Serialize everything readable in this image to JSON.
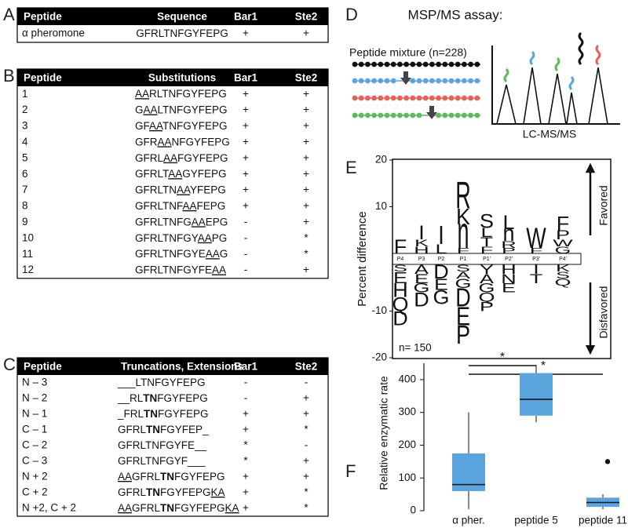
{
  "panel_labels": [
    "A",
    "B",
    "C",
    "D",
    "E",
    "F"
  ],
  "table_a": {
    "header": [
      "Peptide",
      "Sequence",
      "Bar1",
      "Ste2"
    ],
    "rows": [
      [
        "α pheromone",
        [
          {
            "text": "GFRLTNFGYFEPG"
          }
        ],
        "+",
        "+"
      ]
    ]
  },
  "table_b": {
    "header": [
      "Peptide",
      "Substitutions",
      "Bar1",
      "Ste2"
    ],
    "rows": [
      [
        "1",
        [
          {
            "text": "AA",
            "u": true
          },
          {
            "text": "RLTNFGYFEPG"
          }
        ],
        "+",
        "+"
      ],
      [
        "2",
        [
          {
            "text": "G"
          },
          {
            "text": "AA",
            "u": true
          },
          {
            "text": "LTNFGYFEPG"
          }
        ],
        "+",
        "+"
      ],
      [
        "3",
        [
          {
            "text": "GF"
          },
          {
            "text": "AA",
            "u": true
          },
          {
            "text": "TNFGYFEPG"
          }
        ],
        "+",
        "+"
      ],
      [
        "4",
        [
          {
            "text": "GFR"
          },
          {
            "text": "AA",
            "u": true
          },
          {
            "text": "NFGYFEPG"
          }
        ],
        "+",
        "+"
      ],
      [
        "5",
        [
          {
            "text": "GFRL"
          },
          {
            "text": "AA",
            "u": true
          },
          {
            "text": "FGYFEPG"
          }
        ],
        "+",
        "+"
      ],
      [
        "6",
        [
          {
            "text": "GFRLT"
          },
          {
            "text": "AA",
            "u": true
          },
          {
            "text": "GYFEPG"
          }
        ],
        "+",
        "+"
      ],
      [
        "7",
        [
          {
            "text": "GFRLTN"
          },
          {
            "text": "AA",
            "u": true
          },
          {
            "text": "YFEPG"
          }
        ],
        "+",
        "+"
      ],
      [
        "8",
        [
          {
            "text": "GFRLTNF"
          },
          {
            "text": "AA",
            "u": true
          },
          {
            "text": "FEPG"
          }
        ],
        "+",
        "+"
      ],
      [
        "9",
        [
          {
            "text": "GFRLTNFG"
          },
          {
            "text": "AA",
            "u": true
          },
          {
            "text": "EPG"
          }
        ],
        "-",
        "+"
      ],
      [
        "10",
        [
          {
            "text": "GFRLTNFGY"
          },
          {
            "text": "AA",
            "u": true
          },
          {
            "text": "PG"
          }
        ],
        "-",
        "*"
      ],
      [
        "11",
        [
          {
            "text": "GFRLTNFGYE"
          },
          {
            "text": "AA",
            "u": true
          },
          {
            "text": "G"
          }
        ],
        "-",
        "*"
      ],
      [
        "12",
        [
          {
            "text": "GFRLTNFGYFE"
          },
          {
            "text": "AA",
            "u": true
          }
        ],
        "-",
        "+"
      ]
    ]
  },
  "table_c": {
    "header": [
      "Peptide",
      "Truncations, Extensions",
      "Bar1",
      "Ste2"
    ],
    "rows": [
      [
        "N – 3",
        [
          {
            "text": "___LTNFGYFEPG"
          }
        ],
        "-",
        "-"
      ],
      [
        "N – 2",
        [
          {
            "text": "__RL"
          },
          {
            "text": "TN",
            "b": true
          },
          {
            "text": "FGYFEPG"
          }
        ],
        "-",
        "+"
      ],
      [
        "N – 1",
        [
          {
            "text": "_FRL"
          },
          {
            "text": "TN",
            "b": true
          },
          {
            "text": "FGYFEPG"
          }
        ],
        "+",
        "+"
      ],
      [
        "C – 1",
        [
          {
            "text": "GFRL"
          },
          {
            "text": "TN",
            "b": true
          },
          {
            "text": "FGYFEP_"
          }
        ],
        "+",
        "*"
      ],
      [
        "C – 2",
        [
          {
            "text": "GFRLTNFGYFE__"
          }
        ],
        "*",
        "-"
      ],
      [
        "C – 3",
        [
          {
            "text": "GFRLTNFGYF___"
          }
        ],
        "*",
        "+"
      ],
      [
        "N + 2",
        [
          {
            "text": "AA",
            "u": true
          },
          {
            "text": "GFRL"
          },
          {
            "text": "TN",
            "b": true
          },
          {
            "text": "FGYFEPG"
          }
        ],
        "+",
        "+"
      ],
      [
        "C + 2",
        [
          {
            "text": "GFRL"
          },
          {
            "text": "TN",
            "b": true
          },
          {
            "text": "FGYFEPG"
          },
          {
            "text": "KA",
            "u": true
          }
        ],
        "+",
        "*"
      ],
      [
        "N +2, C + 2",
        [
          {
            "text": "AA",
            "u": true
          },
          {
            "text": "GFRL"
          },
          {
            "text": "TN",
            "b": true
          },
          {
            "text": "FGYFEPG"
          },
          {
            "text": "KA",
            "u": true
          }
        ],
        "+",
        "*"
      ]
    ]
  },
  "assay": {
    "title": "MSP/MS assay:",
    "mixture_label": "Peptide mixture (n=228)",
    "instrument_label": "LC-MS/MS"
  },
  "chart_data": [
    {
      "type": "logo",
      "ylabel": "Percent difference",
      "ylim": [
        -20,
        20
      ],
      "yticks": [
        -20,
        -10,
        10,
        20
      ],
      "annotation": "n= 150",
      "favored_label": "Favored",
      "disfavored_label": "Disfavored",
      "positions": [
        {
          "label": "P4",
          "up": [
            {
              "residue": "F",
              "value": 3
            }
          ],
          "down": [
            {
              "residue": "S",
              "value": 1.5
            },
            {
              "residue": "E",
              "value": 2.5
            },
            {
              "residue": "H",
              "value": 3
            },
            {
              "residue": "Q",
              "value": 3
            },
            {
              "residue": "D",
              "value": 3
            }
          ]
        },
        {
          "label": "P3",
          "up": [
            {
              "residue": "H",
              "value": 1.5
            },
            {
              "residue": "K",
              "value": 1.5
            },
            {
              "residue": "I",
              "value": 3
            }
          ],
          "down": [
            {
              "residue": "A",
              "value": 2
            },
            {
              "residue": "E",
              "value": 2
            },
            {
              "residue": "G",
              "value": 2
            },
            {
              "residue": "D",
              "value": 3
            }
          ]
        },
        {
          "label": "P2",
          "up": [
            {
              "residue": "L",
              "value": 2
            },
            {
              "residue": "I",
              "value": 4
            }
          ],
          "down": [
            {
              "residue": "D",
              "value": 3
            },
            {
              "residue": "E",
              "value": 2.5
            },
            {
              "residue": "G",
              "value": 3
            }
          ]
        },
        {
          "label": "P1",
          "up": [
            {
              "residue": "F",
              "value": 1.2
            },
            {
              "residue": "n",
              "value": 5
            },
            {
              "residue": "K",
              "value": 3.5
            },
            {
              "residue": "R",
              "value": 6
            }
          ],
          "down": [
            {
              "residue": "S",
              "value": 1.5
            },
            {
              "residue": "A",
              "value": 1.5
            },
            {
              "residue": "G",
              "value": 2
            },
            {
              "residue": "D",
              "value": 4
            },
            {
              "residue": "E",
              "value": 4
            },
            {
              "residue": "P",
              "value": 4
            }
          ]
        },
        {
          "label": "P1′",
          "up": [
            {
              "residue": "F",
              "value": 1.5,
              "color": "#777777"
            },
            {
              "residue": "T",
              "value": 2,
              "color": "#777777"
            },
            {
              "residue": "L",
              "value": 2,
              "color": "#777777"
            },
            {
              "residue": "S",
              "value": 3,
              "color": "#777777"
            }
          ],
          "down": [
            {
              "residue": "Y",
              "value": 2,
              "color": "#777777"
            },
            {
              "residue": "A",
              "value": 2,
              "color": "#777777"
            },
            {
              "residue": "G",
              "value": 2,
              "color": "#777777"
            },
            {
              "residue": "Q",
              "value": 2,
              "color": "#777777"
            },
            {
              "residue": "P",
              "value": 2,
              "color": "#777777"
            }
          ]
        },
        {
          "label": "P2′",
          "up": [
            {
              "residue": "P",
              "value": 1.2,
              "color": "#777777"
            },
            {
              "residue": "R",
              "value": 1.5,
              "color": "#777777"
            },
            {
              "residue": "n",
              "value": 2.5
            },
            {
              "residue": "L",
              "value": 3
            }
          ],
          "down": [
            {
              "residue": "H",
              "value": 2,
              "color": "#777777"
            },
            {
              "residue": "N",
              "value": 2,
              "color": "#777777"
            },
            {
              "residue": "E",
              "value": 2,
              "color": "#777777"
            }
          ]
        },
        {
          "label": "P3′",
          "up": [
            {
              "residue": "F",
              "value": 1.2,
              "color": "#777777"
            },
            {
              "residue": "W",
              "value": 4.5
            }
          ],
          "down": [
            {
              "residue": "I",
              "value": 2
            },
            {
              "residue": "T",
              "value": 2
            }
          ]
        },
        {
          "label": "P4′",
          "up": [
            {
              "residue": "G",
              "value": 1.5,
              "color": "#777777"
            },
            {
              "residue": "W",
              "value": 1.5,
              "color": "#777777"
            },
            {
              "residue": "P",
              "value": 2,
              "color": "#777777"
            },
            {
              "residue": "F",
              "value": 3,
              "color": "#777777"
            }
          ],
          "down": [
            {
              "residue": "K",
              "value": 1.5,
              "color": "#777777"
            },
            {
              "residue": "S",
              "value": 1.5,
              "color": "#777777"
            },
            {
              "residue": "Q",
              "value": 1.5,
              "color": "#777777"
            }
          ]
        }
      ]
    },
    {
      "type": "box",
      "ylabel": "Relative enzymatic rate",
      "categories": [
        "α pher.",
        "peptide 5",
        "peptide 11"
      ],
      "color": "#5aa5dd",
      "ylim": [
        0,
        450
      ],
      "yticks": [
        0,
        100,
        200,
        300,
        400
      ],
      "min": [
        5,
        270,
        5
      ],
      "q1": [
        60,
        290,
        12
      ],
      "median": [
        80,
        340,
        25
      ],
      "q3": [
        175,
        420,
        40
      ],
      "max": [
        300,
        445,
        50
      ],
      "outliers": [
        [],
        [],
        [
          150
        ]
      ],
      "annotations": [
        "*",
        "*"
      ]
    }
  ]
}
